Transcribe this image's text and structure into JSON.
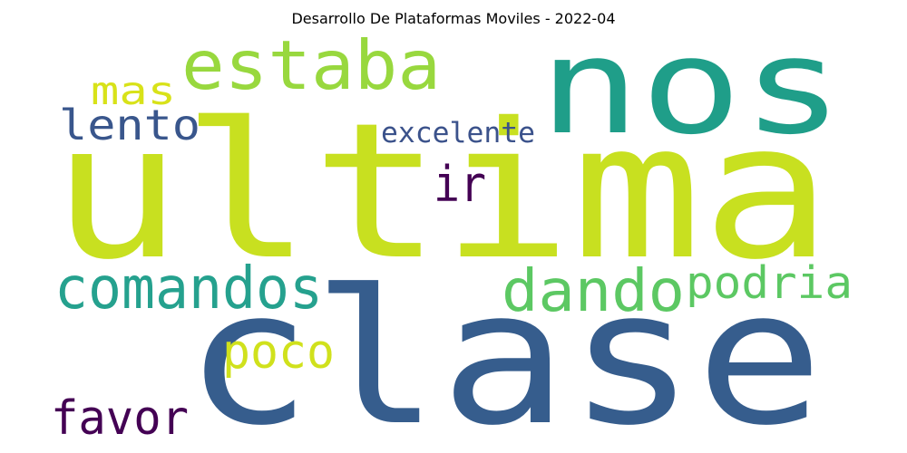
{
  "title": "Desarrollo De Plataformas Moviles - 2022-04",
  "words": [
    {
      "text": "ultima",
      "color": "#c8e020"
    },
    {
      "text": "clase",
      "color": "#365d8d"
    },
    {
      "text": "nos",
      "color": "#1f9e89"
    },
    {
      "text": "estaba",
      "color": "#98d83e"
    },
    {
      "text": "comandos",
      "color": "#25a18e"
    },
    {
      "text": "dando",
      "color": "#5cc863"
    },
    {
      "text": "podria",
      "color": "#5cc863"
    },
    {
      "text": "poco",
      "color": "#d0e11c"
    },
    {
      "text": "favor",
      "color": "#440154"
    },
    {
      "text": "lento",
      "color": "#39568c"
    },
    {
      "text": "mas",
      "color": "#d8e219"
    },
    {
      "text": "excelente",
      "color": "#3b528b"
    },
    {
      "text": "ir",
      "color": "#440154"
    }
  ]
}
